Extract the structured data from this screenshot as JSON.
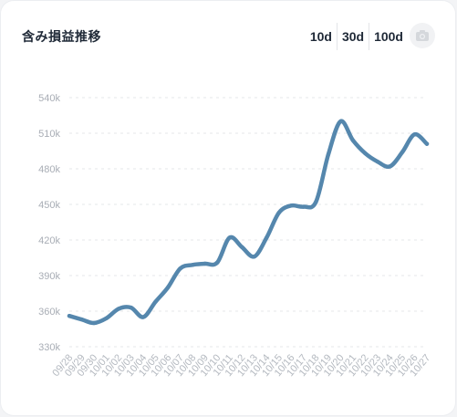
{
  "card": {
    "title": "含み損益推移",
    "ranges": [
      "10d",
      "30d",
      "100d"
    ],
    "camera_icon": "camera-icon"
  },
  "colors": {
    "line": "#5587ad",
    "grid": "#e4e7ea",
    "axis_text": "#a8adb5"
  },
  "chart_data": {
    "type": "line",
    "title": "",
    "xlabel": "",
    "ylabel": "",
    "ylim": [
      330000,
      540000
    ],
    "y_ticks": [
      330000,
      360000,
      390000,
      420000,
      450000,
      480000,
      510000,
      540000
    ],
    "y_tick_labels": [
      "330k",
      "360k",
      "390k",
      "420k",
      "450k",
      "480k",
      "510k",
      "540k"
    ],
    "grid": true,
    "legend": "none",
    "x_tick_labels": [
      "09/28",
      "09/29",
      "09/30",
      "10/01",
      "10/02",
      "10/03",
      "10/04",
      "10/05",
      "10/06",
      "10/07",
      "10/08",
      "10/09",
      "10/10",
      "10/11",
      "10/12",
      "10/13",
      "10/14",
      "10/15",
      "10/16",
      "10/17",
      "10/18",
      "10/19",
      "10/20",
      "10/21",
      "10/22",
      "10/23",
      "10/24",
      "10/25",
      "10/26",
      "10/27"
    ],
    "series": [
      {
        "x": [
          "09/28",
          "09/29",
          "09/30",
          "10/01",
          "10/02",
          "10/03",
          "10/04",
          "10/05",
          "10/06",
          "10/07",
          "10/08",
          "10/09",
          "10/10",
          "10/11",
          "10/12",
          "10/13",
          "10/14",
          "10/15",
          "10/16",
          "10/17",
          "10/18",
          "10/19",
          "10/20",
          "10/21",
          "10/22",
          "10/23",
          "10/24",
          "10/25",
          "10/26",
          "10/27"
        ],
        "values": [
          356000,
          353000,
          350000,
          354000,
          362000,
          363000,
          355000,
          368000,
          380000,
          396000,
          399000,
          400000,
          401000,
          422000,
          414000,
          406000,
          422000,
          443000,
          449000,
          448000,
          452000,
          492000,
          520000,
          504000,
          493000,
          486000,
          482000,
          494000,
          509000,
          501000
        ]
      }
    ]
  }
}
